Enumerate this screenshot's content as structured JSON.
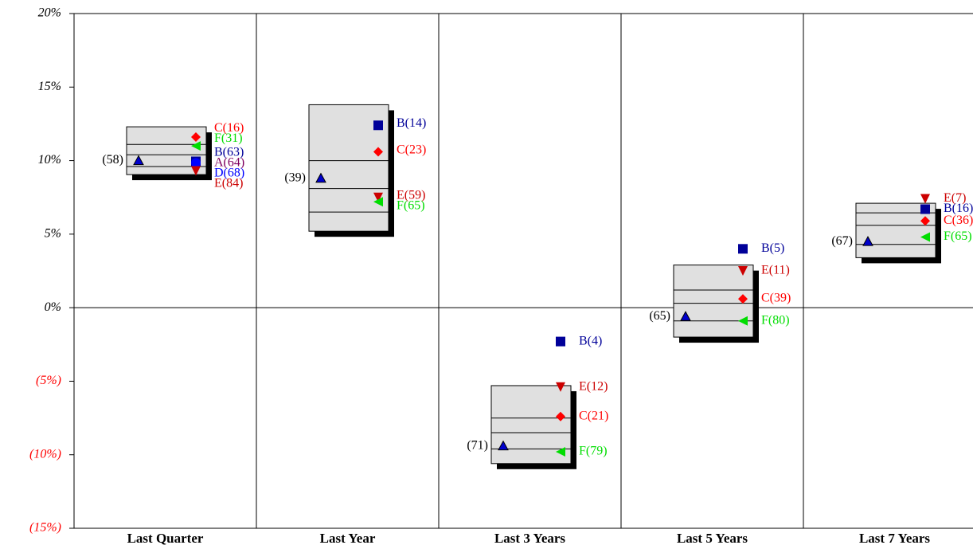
{
  "chart_data": {
    "type": "percentile",
    "categories": [
      "Last Quarter",
      "Last Year",
      "Last 3 Years",
      "Last 5 Years",
      "Last 7 Years"
    ],
    "ylim": [
      -15,
      20
    ],
    "yticks": [
      {
        "value": 20,
        "label": "20%"
      },
      {
        "value": 15,
        "label": "15%"
      },
      {
        "value": 10,
        "label": "10%"
      },
      {
        "value": 5,
        "label": "5%"
      },
      {
        "value": 0,
        "label": "0%"
      },
      {
        "value": -5,
        "label": "(5%)"
      },
      {
        "value": -10,
        "label": "(10%)"
      },
      {
        "value": -15,
        "label": "(15%)"
      }
    ],
    "negative_tick_color": "#ff0000",
    "box_color": "#e0e0e0",
    "boxes": [
      [
        12.3,
        11.1,
        10.4,
        9.6,
        9.05
      ],
      [
        13.8,
        10.0,
        8.1,
        6.5,
        5.2
      ],
      [
        -5.3,
        -7.5,
        -8.5,
        -9.6,
        -10.6
      ],
      [
        2.9,
        1.2,
        0.3,
        -0.9,
        -2.0
      ],
      [
        7.1,
        6.45,
        5.6,
        4.3,
        3.4
      ]
    ],
    "fund": {
      "color": "#0000cc",
      "values": [
        10.0,
        8.8,
        -9.4,
        -0.6,
        4.5
      ],
      "rank_labels": [
        "(58)",
        "(39)",
        "(71)",
        "(65)",
        "(67)"
      ]
    },
    "peers": [
      {
        "color": "#800060",
        "marker": "circle",
        "values": [
          9.9,
          null,
          null,
          null,
          null
        ],
        "rank_labels": [
          "A(64)",
          null,
          null,
          null,
          null
        ]
      },
      {
        "color": "#000099",
        "marker": "square",
        "values": [
          9.95,
          12.4,
          -2.3,
          4.0,
          6.7
        ],
        "rank_labels": [
          "B(63)",
          "B(14)",
          "B(4)",
          "B(5)",
          "B(16)"
        ]
      },
      {
        "color": "#ff0000",
        "marker": "diamond",
        "values": [
          11.6,
          10.6,
          -7.4,
          0.6,
          5.9
        ],
        "rank_labels": [
          "C(16)",
          "C(23)",
          "C(21)",
          "C(39)",
          "C(36)"
        ]
      },
      {
        "color": "#0000ff",
        "marker": "circle",
        "values": [
          9.85,
          null,
          null,
          null,
          null
        ],
        "rank_labels": [
          "D(68)",
          null,
          null,
          null,
          null
        ]
      },
      {
        "color": "#cc0000",
        "marker": "tri-down",
        "values": [
          9.3,
          7.5,
          -5.4,
          2.5,
          7.4
        ],
        "rank_labels": [
          "E(84)",
          "E(59)",
          "E(12)",
          "E(11)",
          "E(7)"
        ]
      },
      {
        "color": "#00dd00",
        "marker": "tri-left",
        "values": [
          11.0,
          7.2,
          -9.8,
          -0.9,
          4.8
        ],
        "rank_labels": [
          "F(31)",
          "F(65)",
          "F(79)",
          "F(80)",
          "F(65)"
        ]
      }
    ]
  }
}
